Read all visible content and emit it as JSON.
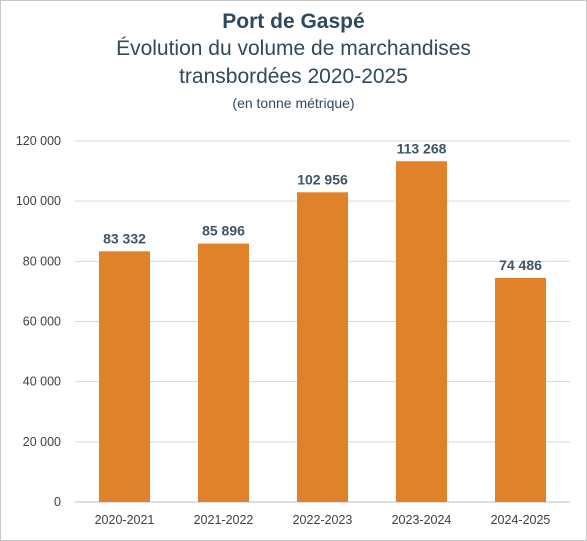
{
  "title": "Port de Gaspé",
  "subtitle_line1": "Évolution du volume de marchandises",
  "subtitle_line2": "transbordées 2020-2025",
  "unit_note": "(en tonne métrique)",
  "colors": {
    "bar": "#e0822a",
    "grid": "#d9d9d9",
    "title": "#2f4a5c",
    "data_label": "#3d5566"
  },
  "chart_data": {
    "type": "bar",
    "title": "Port de Gaspé",
    "categories": [
      "2020-2021",
      "2021-2022",
      "2022-2023",
      "2023-2024",
      "2024-2025"
    ],
    "values": [
      83332,
      85896,
      102956,
      113268,
      74486
    ],
    "value_labels": [
      "83 332",
      "85 896",
      "102 956",
      "113 268",
      "74 486"
    ],
    "ylim": [
      0,
      120000
    ],
    "yticks": [
      0,
      20000,
      40000,
      60000,
      80000,
      100000,
      120000
    ],
    "ytick_labels": [
      "0",
      "20 000",
      "40 000",
      "60 000",
      "80 000",
      "100 000",
      "120 000"
    ],
    "xlabel": "",
    "ylabel": "",
    "grid": true,
    "legend": "none"
  }
}
